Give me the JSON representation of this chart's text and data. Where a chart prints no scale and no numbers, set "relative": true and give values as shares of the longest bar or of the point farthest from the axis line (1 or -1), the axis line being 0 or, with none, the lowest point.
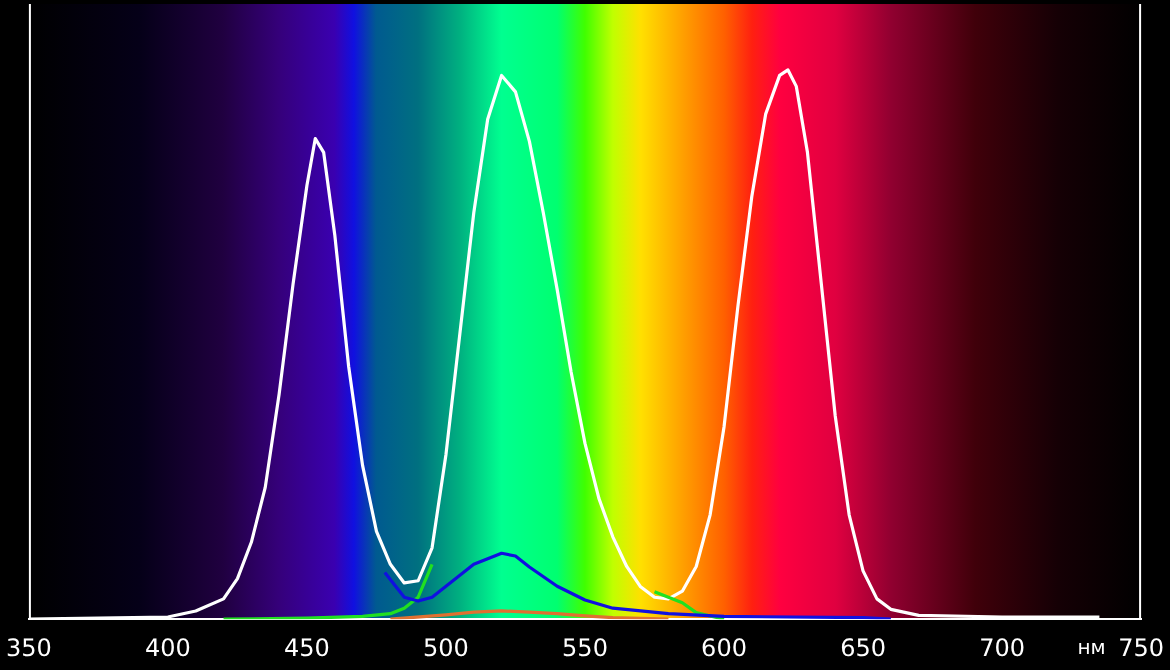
{
  "chart_data": {
    "type": "line",
    "xlabel": "нм",
    "relative": true,
    "xlim": [
      350,
      750
    ],
    "xticks": [
      350,
      400,
      450,
      500,
      550,
      600,
      650,
      700,
      750
    ],
    "grid": false,
    "legend": false,
    "marker": "none",
    "line_style": "solid",
    "series": [
      {
        "color": "#ffffff",
        "x": [
          350,
          400,
          410,
          420,
          425,
          430,
          435,
          440,
          445,
          450,
          453,
          456,
          460,
          465,
          470,
          475,
          480,
          485,
          490,
          495,
          500,
          505,
          510,
          515,
          520,
          525,
          530,
          535,
          540,
          545,
          550,
          555,
          560,
          565,
          570,
          575,
          580,
          585,
          590,
          595,
          600,
          605,
          610,
          615,
          620,
          623,
          626,
          630,
          635,
          640,
          645,
          650,
          655,
          660,
          670,
          700,
          735
        ],
        "values": [
          0,
          0.004,
          0.015,
          0.037,
          0.074,
          0.14,
          0.24,
          0.41,
          0.61,
          0.79,
          0.875,
          0.85,
          0.7,
          0.46,
          0.28,
          0.16,
          0.1,
          0.066,
          0.07,
          0.13,
          0.3,
          0.52,
          0.74,
          0.91,
          0.99,
          0.96,
          0.87,
          0.74,
          0.6,
          0.45,
          0.32,
          0.22,
          0.15,
          0.096,
          0.059,
          0.04,
          0.037,
          0.051,
          0.096,
          0.19,
          0.35,
          0.57,
          0.77,
          0.92,
          0.99,
          1,
          0.97,
          0.85,
          0.61,
          0.37,
          0.19,
          0.088,
          0.037,
          0.018,
          0.007,
          0.004,
          0.004
        ]
      },
      {
        "color": "#20e020",
        "x": [
          420,
          450,
          470,
          480,
          485,
          490,
          495,
          500,
          570,
          575,
          580,
          585,
          590,
          600
        ],
        "values": [
          0,
          0.002,
          0.005,
          0.01,
          0.02,
          0.04,
          0.1,
          null,
          null,
          0.05,
          0.04,
          0.03,
          0.012,
          0
        ]
      },
      {
        "color": "#e07030",
        "x": [
          480,
          500,
          510,
          520,
          530,
          540,
          550,
          560,
          580
        ],
        "values": [
          0,
          0.008,
          0.013,
          0.015,
          0.013,
          0.01,
          0.006,
          0.003,
          0
        ]
      },
      {
        "color": "#1010e0",
        "x": [
          478,
          485,
          490,
          495,
          500,
          510,
          520,
          525,
          530,
          540,
          550,
          560,
          580,
          600,
          650,
          660
        ],
        "values": [
          0.085,
          0.04,
          0.033,
          0.04,
          0.06,
          0.1,
          0.12,
          0.115,
          0.095,
          0.06,
          0.035,
          0.02,
          0.01,
          0.005,
          0.003,
          0
        ]
      }
    ]
  }
}
